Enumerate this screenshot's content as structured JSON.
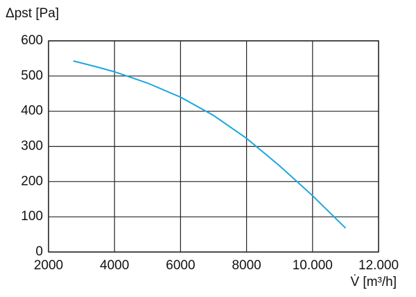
{
  "chart_data": {
    "type": "line",
    "y_label": "Δpst [Pa]",
    "x_label": "V̇ [m³/h]",
    "x": [
      2750,
      3500,
      4000,
      5000,
      6000,
      7000,
      8000,
      9000,
      10000,
      11000
    ],
    "series": [
      {
        "color": "#1aa6e0",
        "values": [
          543,
          525,
          512,
          480,
          440,
          388,
          323,
          245,
          160,
          68
        ]
      }
    ],
    "xlim": [
      2000,
      12000
    ],
    "xticks": [
      2000,
      4000,
      6000,
      8000,
      {
        "value": 10000,
        "label": "10.000"
      },
      {
        "value": 12000,
        "label": "12.000"
      }
    ],
    "ylim": [
      0,
      600
    ],
    "yticks": [
      0,
      100,
      200,
      300,
      400,
      500,
      600
    ],
    "grid": true
  }
}
